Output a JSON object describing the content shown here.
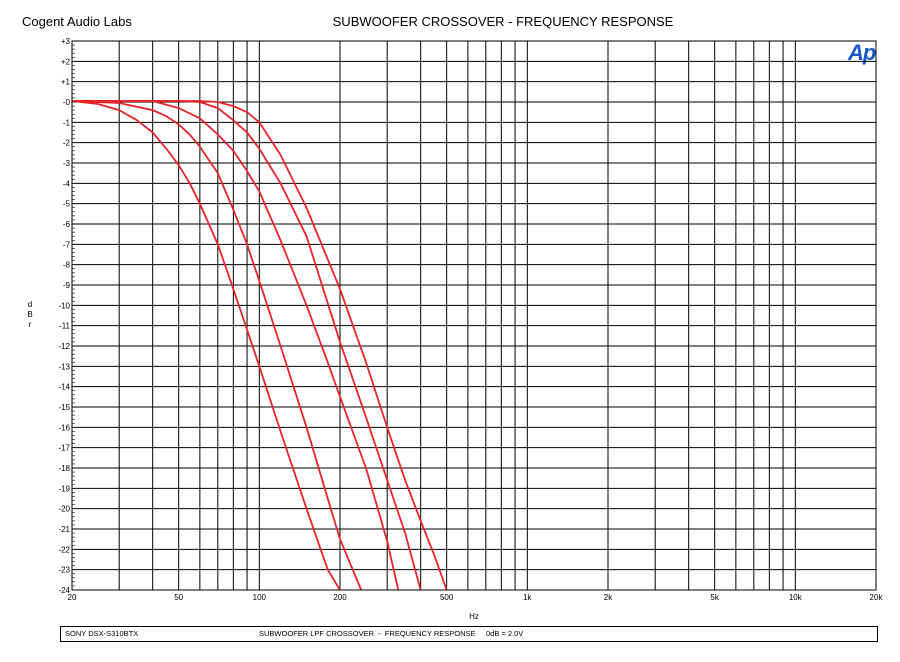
{
  "header": {
    "company": "Cogent Audio Labs",
    "title": "SUBWOOFER CROSSOVER  - FREQUENCY RESPONSE",
    "logo": "Ap"
  },
  "footer": {
    "device": "SONY DSX-S310BTX",
    "description": "SUBWOOFER LPF CROSSOVER  -  FREQUENCY RESPONSE     0dB = 2.0V"
  },
  "chart_data": {
    "type": "line",
    "title": "SUBWOOFER CROSSOVER  - FREQUENCY RESPONSE",
    "xlabel": "Hz",
    "ylabel": "dBr",
    "xscale": "log",
    "xlim": [
      20,
      20000
    ],
    "ylim": [
      -24,
      3
    ],
    "grid": true,
    "line_color": "#e8242a",
    "x_ticks": [
      {
        "value": 20,
        "label": "20"
      },
      {
        "value": 50,
        "label": "50"
      },
      {
        "value": 100,
        "label": "100"
      },
      {
        "value": 200,
        "label": "200"
      },
      {
        "value": 500,
        "label": "500"
      },
      {
        "value": 1000,
        "label": "1k"
      },
      {
        "value": 2000,
        "label": "2k"
      },
      {
        "value": 5000,
        "label": "5k"
      },
      {
        "value": 10000,
        "label": "10k"
      },
      {
        "value": 20000,
        "label": "20k"
      }
    ],
    "y_ticks": [
      {
        "value": 3,
        "label": "+3"
      },
      {
        "value": 2,
        "label": "+2"
      },
      {
        "value": 1,
        "label": "+1"
      },
      {
        "value": 0,
        "label": "-0"
      },
      {
        "value": -1,
        "label": "-1"
      },
      {
        "value": -2,
        "label": "-2"
      },
      {
        "value": -3,
        "label": "-3"
      },
      {
        "value": -4,
        "label": "-4"
      },
      {
        "value": -5,
        "label": "-5"
      },
      {
        "value": -6,
        "label": "-6"
      },
      {
        "value": -7,
        "label": "-7"
      },
      {
        "value": -8,
        "label": "-8"
      },
      {
        "value": -9,
        "label": "-9"
      },
      {
        "value": -10,
        "label": "-10"
      },
      {
        "value": -11,
        "label": "-11"
      },
      {
        "value": -12,
        "label": "-12"
      },
      {
        "value": -13,
        "label": "-13"
      },
      {
        "value": -14,
        "label": "-14"
      },
      {
        "value": -15,
        "label": "-15"
      },
      {
        "value": -16,
        "label": "-16"
      },
      {
        "value": -17,
        "label": "-17"
      },
      {
        "value": -18,
        "label": "-18"
      },
      {
        "value": -19,
        "label": "-19"
      },
      {
        "value": -20,
        "label": "-20"
      },
      {
        "value": -21,
        "label": "-21"
      },
      {
        "value": -22,
        "label": "-22"
      },
      {
        "value": -23,
        "label": "-23"
      },
      {
        "value": -24,
        "label": "-24"
      }
    ],
    "series": [
      {
        "x": [
          20,
          25,
          30,
          35,
          40,
          45,
          50,
          55,
          60,
          70,
          80,
          90,
          100,
          120,
          150,
          180,
          200
        ],
        "y": [
          0.05,
          -0.1,
          -0.4,
          -0.9,
          -1.5,
          -2.3,
          -3.1,
          -4.0,
          -5.0,
          -7.0,
          -9.2,
          -11.2,
          -13.0,
          -16.2,
          -20.0,
          -23.0,
          -24.0
        ]
      },
      {
        "x": [
          20,
          30,
          40,
          45,
          50,
          55,
          60,
          70,
          80,
          90,
          100,
          120,
          150,
          180,
          200,
          240
        ],
        "y": [
          0.05,
          -0.05,
          -0.4,
          -0.7,
          -1.1,
          -1.6,
          -2.2,
          -3.5,
          -5.3,
          -7.0,
          -8.8,
          -12.0,
          -16.0,
          -19.5,
          -21.5,
          -24.0
        ]
      },
      {
        "x": [
          20,
          40,
          50,
          60,
          70,
          80,
          90,
          100,
          120,
          150,
          180,
          200,
          250,
          300,
          330
        ],
        "y": [
          0.05,
          0.05,
          -0.3,
          -0.8,
          -1.6,
          -2.4,
          -3.4,
          -4.4,
          -6.8,
          -10.0,
          -12.8,
          -14.5,
          -18.0,
          -21.6,
          -24.0
        ]
      },
      {
        "x": [
          20,
          50,
          60,
          70,
          80,
          90,
          100,
          120,
          150,
          200,
          250,
          300,
          350,
          400
        ],
        "y": [
          0.05,
          0.05,
          0.0,
          -0.3,
          -0.9,
          -1.5,
          -2.3,
          -4.0,
          -6.6,
          -11.8,
          -15.5,
          -18.6,
          -21.2,
          -24.0
        ]
      },
      {
        "x": [
          20,
          60,
          70,
          80,
          90,
          100,
          120,
          150,
          200,
          250,
          300,
          350,
          400,
          450,
          500
        ],
        "y": [
          0.05,
          0.05,
          0.0,
          -0.2,
          -0.5,
          -1.0,
          -2.6,
          -5.2,
          -9.2,
          -12.8,
          -16.0,
          -18.6,
          -20.6,
          -22.3,
          -24.0
        ]
      }
    ]
  }
}
